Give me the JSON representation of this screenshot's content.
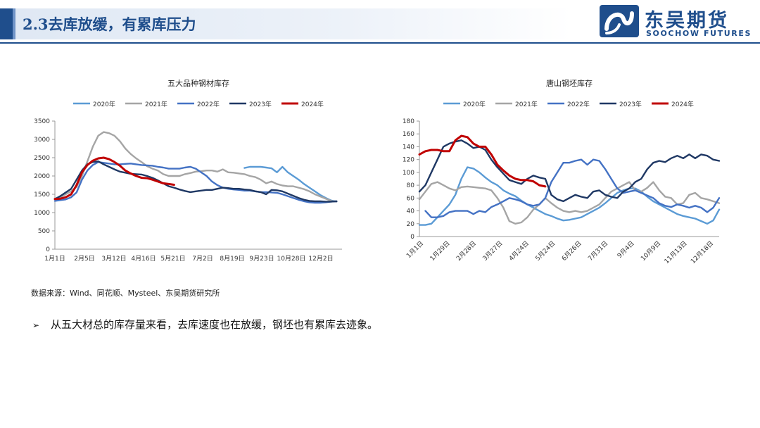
{
  "header": {
    "title": "2.3去库放缓，有累库压力"
  },
  "logo": {
    "name_cn": "东吴期货",
    "name_en": "SOOCHOW FUTURES",
    "icon": "soochow-logo-icon"
  },
  "colors": {
    "y2020": "#5b9bd5",
    "y2021": "#a5a5a5",
    "y2022": "#4472c4",
    "y2023": "#1f3864",
    "y2024": "#c00000",
    "brand": "#1f4e8c"
  },
  "chart_data": [
    {
      "type": "line",
      "title": "五大品种钢材库存",
      "x_ticks": [
        "1月1日",
        "2月5日",
        "3月12日",
        "4月16日",
        "5月21日",
        "7月2日",
        "8月19日",
        "9月23日",
        "10月28日",
        "12月2日"
      ],
      "ylim": [
        0,
        3500
      ],
      "y_ticks": [
        0,
        500,
        1000,
        1500,
        2000,
        2500,
        3000,
        3500
      ],
      "legend_position": "top",
      "grid": false,
      "series": [
        {
          "name": "2020年",
          "color": "#5b9bd5",
          "x": [
            35,
            36,
            37,
            38,
            39,
            40,
            41,
            42,
            43,
            44,
            45,
            46,
            47,
            48,
            49,
            50,
            51,
            52
          ],
          "values": [
            2220,
            2250,
            2250,
            2250,
            2230,
            2210,
            2100,
            2250,
            2100,
            2000,
            1900,
            1780,
            1680,
            1580,
            1480,
            1400,
            1330,
            1300
          ]
        },
        {
          "name": "2021年",
          "color": "#a5a5a5",
          "x": [
            0,
            1,
            2,
            3,
            4,
            5,
            6,
            7,
            8,
            9,
            10,
            11,
            12,
            13,
            14,
            15,
            16,
            17,
            18,
            19,
            20,
            21,
            22,
            23,
            24,
            25,
            26,
            27,
            28,
            29,
            30,
            31,
            32,
            33,
            34,
            35,
            36,
            37,
            38,
            39,
            40,
            41,
            42,
            43,
            44,
            45,
            46,
            47,
            48,
            49,
            50,
            51,
            52
          ],
          "values": [
            1380,
            1420,
            1500,
            1580,
            1700,
            2000,
            2400,
            2800,
            3100,
            3200,
            3170,
            3100,
            2950,
            2750,
            2600,
            2480,
            2380,
            2270,
            2200,
            2150,
            2050,
            2000,
            2000,
            2000,
            2050,
            2080,
            2120,
            2130,
            2150,
            2150,
            2120,
            2180,
            2100,
            2090,
            2070,
            2050,
            2000,
            1970,
            1900,
            1800,
            1850,
            1780,
            1740,
            1720,
            1720,
            1680,
            1640,
            1580,
            1500,
            1440,
            1380,
            1320,
            1300
          ]
        },
        {
          "name": "2022年",
          "color": "#4472c4",
          "x": [
            0,
            1,
            2,
            3,
            4,
            5,
            6,
            7,
            8,
            9,
            10,
            11,
            12,
            13,
            14,
            15,
            16,
            17,
            18,
            19,
            20,
            21,
            22,
            23,
            24,
            25,
            26,
            27,
            28,
            29,
            30,
            31,
            32,
            33,
            34,
            35,
            36,
            37,
            38,
            39,
            40,
            41,
            42,
            43,
            44,
            45,
            46,
            47,
            48,
            49,
            50,
            51,
            52
          ],
          "values": [
            1320,
            1340,
            1360,
            1420,
            1550,
            1900,
            2150,
            2300,
            2380,
            2360,
            2340,
            2320,
            2320,
            2330,
            2340,
            2320,
            2300,
            2290,
            2280,
            2250,
            2230,
            2200,
            2200,
            2200,
            2230,
            2250,
            2200,
            2100,
            2000,
            1850,
            1750,
            1680,
            1650,
            1630,
            1620,
            1600,
            1600,
            1580,
            1560,
            1560,
            1550,
            1540,
            1500,
            1450,
            1400,
            1350,
            1310,
            1280,
            1270,
            1270,
            1280,
            1300,
            1310
          ]
        },
        {
          "name": "2023年",
          "color": "#1f3864",
          "x": [
            0,
            1,
            2,
            3,
            4,
            5,
            6,
            7,
            8,
            9,
            10,
            11,
            12,
            13,
            14,
            15,
            16,
            17,
            18,
            19,
            20,
            21,
            22,
            23,
            24,
            25,
            26,
            27,
            28,
            29,
            30,
            31,
            32,
            33,
            34,
            35,
            36,
            37,
            38,
            39,
            40,
            41,
            42,
            43,
            44,
            45,
            46,
            47,
            48,
            49,
            50,
            51,
            52
          ],
          "values": [
            1370,
            1450,
            1550,
            1650,
            1900,
            2150,
            2320,
            2380,
            2400,
            2320,
            2250,
            2180,
            2120,
            2090,
            2060,
            2050,
            2040,
            2000,
            1950,
            1880,
            1800,
            1720,
            1680,
            1630,
            1590,
            1560,
            1580,
            1600,
            1620,
            1620,
            1650,
            1680,
            1670,
            1650,
            1650,
            1630,
            1620,
            1580,
            1560,
            1500,
            1620,
            1610,
            1580,
            1520,
            1460,
            1400,
            1350,
            1320,
            1310,
            1310,
            1300,
            1300,
            1310
          ]
        },
        {
          "name": "2024年",
          "color": "#c00000",
          "x": [
            0,
            1,
            2,
            3,
            4,
            5,
            6,
            7,
            8,
            9,
            10,
            11,
            12,
            13,
            14,
            15,
            16,
            17,
            18,
            19,
            20,
            21,
            22
          ],
          "values": [
            1370,
            1380,
            1420,
            1500,
            1750,
            2100,
            2300,
            2420,
            2480,
            2500,
            2460,
            2380,
            2280,
            2150,
            2070,
            2000,
            1950,
            1940,
            1900,
            1850,
            1800,
            1780,
            1760
          ]
        }
      ]
    },
    {
      "type": "line",
      "title": "唐山钢坯库存",
      "x_ticks": [
        "1月1日",
        "1月29日",
        "2月28日",
        "3月27日",
        "4月24日",
        "5月24日",
        "6月26日",
        "7月31日",
        "9月4日",
        "10月9日",
        "11月13日",
        "12月18日"
      ],
      "ylim": [
        0,
        180
      ],
      "y_ticks": [
        0,
        20,
        40,
        60,
        80,
        100,
        120,
        140,
        160,
        180
      ],
      "legend_position": "top",
      "grid": false,
      "series": [
        {
          "name": "2020年",
          "color": "#5b9bd5",
          "x": [
            0,
            1,
            2,
            3,
            4,
            5,
            6,
            7,
            8,
            9,
            10,
            11,
            12,
            13,
            14,
            15,
            16,
            17,
            18,
            19,
            20,
            21,
            22,
            23,
            24,
            25,
            26,
            27,
            28,
            29,
            30,
            31,
            32,
            33,
            34,
            35,
            36,
            37,
            38,
            39,
            40,
            41,
            42,
            43,
            44,
            45,
            46,
            47,
            48,
            49,
            50
          ],
          "values": [
            18,
            18,
            20,
            30,
            40,
            50,
            65,
            90,
            108,
            106,
            100,
            92,
            85,
            80,
            72,
            67,
            63,
            56,
            50,
            45,
            40,
            35,
            32,
            28,
            25,
            26,
            28,
            30,
            35,
            40,
            45,
            52,
            60,
            68,
            72,
            75,
            75,
            70,
            62,
            55,
            50,
            45,
            40,
            35,
            32,
            30,
            28,
            24,
            20,
            25,
            42
          ]
        },
        {
          "name": "2021年",
          "color": "#a5a5a5",
          "x": [
            0,
            1,
            2,
            3,
            4,
            5,
            6,
            7,
            8,
            9,
            10,
            11,
            12,
            13,
            14,
            15,
            16,
            17,
            18,
            19,
            20,
            21,
            22,
            23,
            24,
            25,
            26,
            27,
            28,
            29,
            30,
            31,
            32,
            33,
            34,
            35,
            36,
            37,
            38,
            39,
            40,
            41,
            42,
            43,
            44,
            45,
            46,
            47,
            48,
            49,
            50
          ],
          "values": [
            58,
            70,
            82,
            85,
            80,
            75,
            72,
            77,
            78,
            77,
            76,
            75,
            72,
            60,
            45,
            24,
            20,
            22,
            30,
            42,
            50,
            60,
            52,
            45,
            40,
            38,
            40,
            38,
            40,
            45,
            50,
            60,
            70,
            75,
            80,
            85,
            72,
            70,
            76,
            85,
            72,
            62,
            60,
            50,
            52,
            65,
            68,
            60,
            58,
            55,
            52
          ]
        },
        {
          "name": "2022年",
          "color": "#4472c4",
          "x": [
            1,
            2,
            3,
            4,
            5,
            6,
            7,
            8,
            9,
            10,
            11,
            12,
            13,
            14,
            15,
            16,
            17,
            18,
            19,
            20,
            21,
            22,
            23,
            24,
            25,
            26,
            27,
            28,
            29,
            30,
            31,
            32,
            33,
            34,
            35,
            36,
            37,
            38,
            39,
            40,
            41,
            42,
            43,
            44,
            45,
            46,
            47,
            48,
            49,
            50
          ],
          "values": [
            40,
            30,
            30,
            32,
            38,
            40,
            40,
            40,
            35,
            40,
            38,
            46,
            50,
            55,
            60,
            58,
            55,
            50,
            48,
            50,
            60,
            85,
            100,
            115,
            115,
            118,
            120,
            112,
            120,
            118,
            105,
            90,
            75,
            68,
            70,
            72,
            68,
            64,
            60,
            52,
            48,
            46,
            50,
            48,
            45,
            48,
            45,
            38,
            45,
            60
          ]
        },
        {
          "name": "2023年",
          "color": "#1f3864",
          "x": [
            0,
            1,
            2,
            3,
            4,
            5,
            6,
            7,
            8,
            9,
            10,
            11,
            12,
            13,
            14,
            15,
            16,
            17,
            18,
            19,
            20,
            21,
            22,
            23,
            24,
            25,
            26,
            27,
            28,
            29,
            30,
            31,
            32,
            33,
            34,
            35,
            36,
            37,
            38,
            39,
            40,
            41,
            42,
            43,
            44,
            45,
            46,
            47,
            48,
            49,
            50
          ],
          "values": [
            70,
            80,
            100,
            120,
            140,
            145,
            148,
            150,
            145,
            138,
            140,
            135,
            120,
            108,
            98,
            88,
            85,
            82,
            90,
            95,
            92,
            90,
            65,
            58,
            55,
            60,
            65,
            62,
            60,
            70,
            72,
            65,
            62,
            60,
            70,
            75,
            85,
            90,
            105,
            115,
            118,
            116,
            122,
            126,
            122,
            128,
            122,
            128,
            126,
            120,
            118
          ]
        },
        {
          "name": "2024年",
          "color": "#c00000",
          "x": [
            0,
            1,
            2,
            3,
            4,
            5,
            6,
            7,
            8,
            9,
            10,
            11,
            12,
            13,
            14,
            15,
            16,
            17,
            18,
            19,
            20,
            21
          ],
          "values": [
            128,
            133,
            135,
            135,
            133,
            133,
            150,
            157,
            155,
            145,
            140,
            140,
            128,
            112,
            103,
            95,
            90,
            88,
            88,
            86,
            80,
            78
          ]
        }
      ]
    }
  ],
  "source_text": "数据来源：Wind、同花顺、Mysteel、东吴期货研究所",
  "bullet": {
    "arrow": "➢",
    "text": "从五大材总的库存量来看，去库速度也在放缓，钢坯也有累库去迹象。"
  }
}
